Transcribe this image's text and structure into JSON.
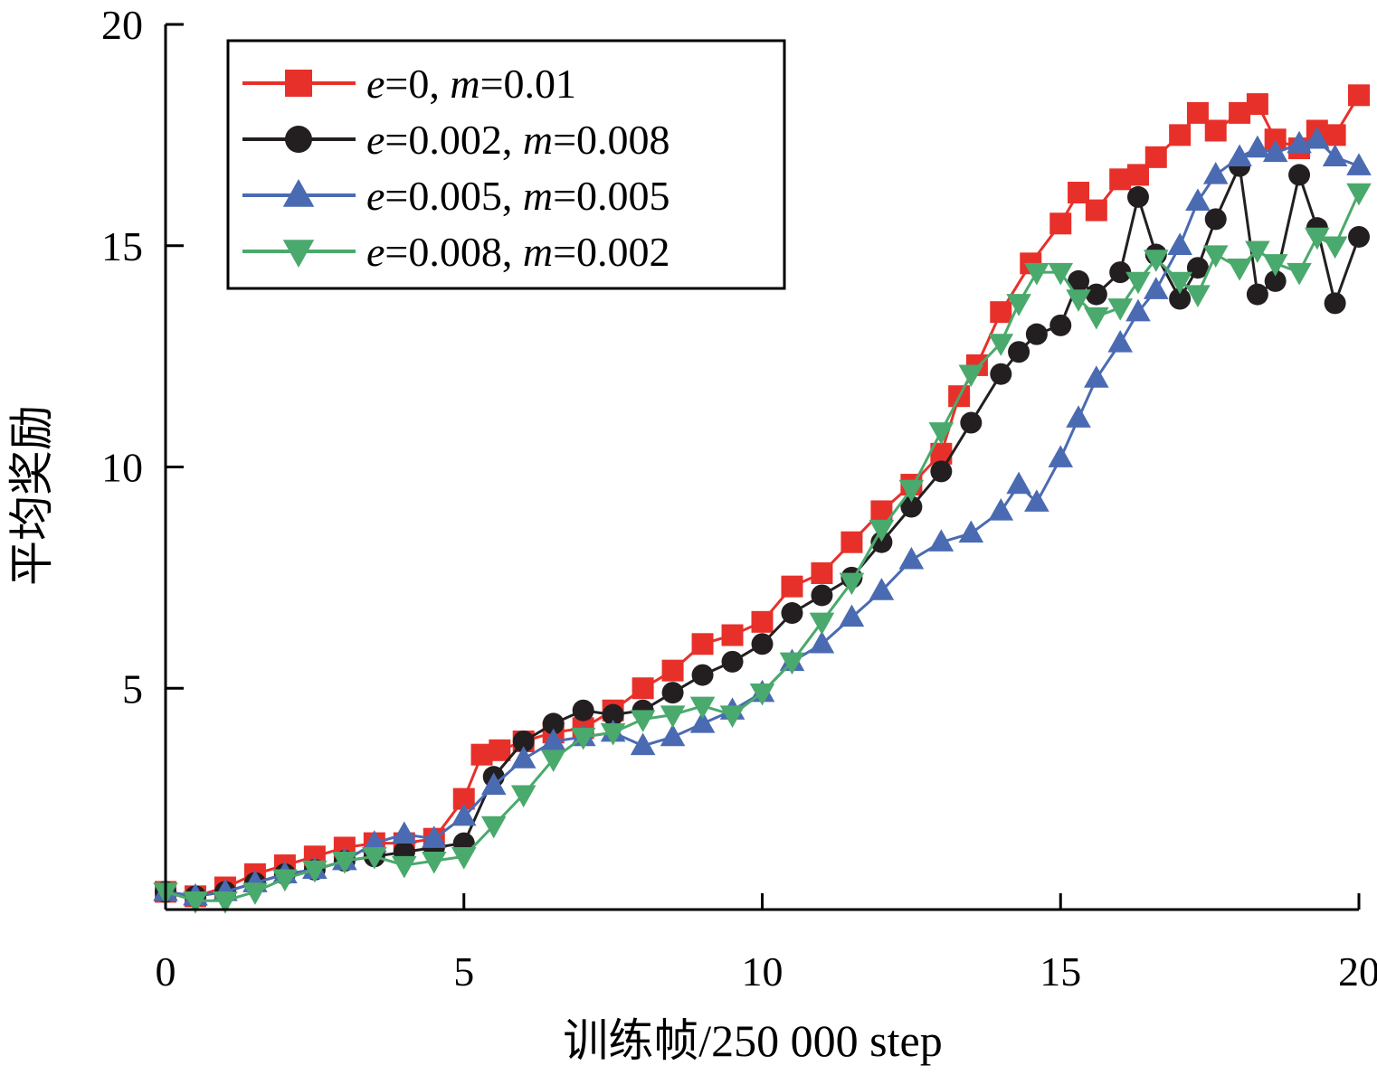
{
  "chart_data": {
    "type": "line",
    "xlabel": "训练帧/250 000 step",
    "ylabel": "平均奖励",
    "xlim": [
      0,
      20
    ],
    "ylim": [
      0,
      20
    ],
    "xticks": [
      "0",
      "5",
      "10",
      "15",
      "20"
    ],
    "yticks": [
      "5",
      "10",
      "15",
      "20"
    ],
    "legend_position": "top-left",
    "grid": false,
    "series": [
      {
        "name": "e=0, m=0.01",
        "legend_parts": [
          {
            "t": "e",
            "italic": true
          },
          {
            "t": "=0, ",
            "italic": false
          },
          {
            "t": "m",
            "italic": true
          },
          {
            "t": "=0.01",
            "italic": false
          }
        ],
        "color": "#e8302a",
        "marker": "square",
        "x": [
          0.0,
          0.5,
          1.0,
          1.5,
          2.0,
          2.5,
          3.0,
          3.5,
          4.0,
          4.5,
          5.0,
          5.3,
          5.6,
          6.0,
          6.5,
          7.0,
          7.5,
          8.0,
          8.5,
          9.0,
          9.5,
          10.0,
          10.5,
          11.0,
          11.5,
          12.0,
          12.5,
          13.0,
          13.3,
          13.6,
          14.0,
          14.5,
          15.0,
          15.3,
          15.6,
          16.0,
          16.3,
          16.6,
          17.0,
          17.3,
          17.6,
          18.0,
          18.3,
          18.6,
          19.0,
          19.3,
          19.6,
          20.0
        ],
        "y": [
          0.4,
          0.3,
          0.5,
          0.8,
          1.0,
          1.2,
          1.4,
          1.5,
          1.5,
          1.6,
          2.5,
          3.5,
          3.6,
          3.8,
          4.0,
          4.1,
          4.5,
          5.0,
          5.4,
          6.0,
          6.2,
          6.5,
          7.3,
          7.6,
          8.3,
          9.0,
          9.6,
          10.3,
          11.6,
          12.3,
          13.5,
          14.6,
          15.5,
          16.2,
          15.8,
          16.5,
          16.6,
          17.0,
          17.5,
          18.0,
          17.6,
          18.0,
          18.2,
          17.4,
          17.2,
          17.6,
          17.5,
          18.4
        ]
      },
      {
        "name": "e=0.002, m=0.008",
        "legend_parts": [
          {
            "t": "e",
            "italic": true
          },
          {
            "t": "=0.002, ",
            "italic": false
          },
          {
            "t": "m",
            "italic": true
          },
          {
            "t": "=0.008",
            "italic": false
          }
        ],
        "color": "#231f20",
        "marker": "circle",
        "x": [
          0.0,
          0.5,
          1.0,
          1.5,
          2.0,
          2.5,
          3.0,
          3.5,
          4.0,
          4.5,
          5.0,
          5.5,
          6.0,
          6.5,
          7.0,
          7.5,
          8.0,
          8.5,
          9.0,
          9.5,
          10.0,
          10.5,
          11.0,
          11.5,
          12.0,
          12.5,
          13.0,
          13.5,
          14.0,
          14.3,
          14.6,
          15.0,
          15.3,
          15.6,
          16.0,
          16.3,
          16.6,
          17.0,
          17.3,
          17.6,
          18.0,
          18.3,
          18.6,
          19.0,
          19.3,
          19.6,
          20.0
        ],
        "y": [
          0.4,
          0.3,
          0.4,
          0.6,
          0.8,
          0.9,
          1.1,
          1.2,
          1.3,
          1.4,
          1.5,
          3.0,
          3.8,
          4.2,
          4.5,
          4.4,
          4.5,
          4.9,
          5.3,
          5.6,
          6.0,
          6.7,
          7.1,
          7.5,
          8.3,
          9.1,
          9.9,
          11.0,
          12.1,
          12.6,
          13.0,
          13.2,
          14.2,
          13.9,
          14.4,
          16.1,
          14.8,
          13.8,
          14.5,
          15.6,
          16.8,
          13.9,
          14.2,
          16.6,
          15.4,
          13.7,
          15.2
        ]
      },
      {
        "name": "e=0.005, m=0.005",
        "legend_parts": [
          {
            "t": "e",
            "italic": true
          },
          {
            "t": "=0.005, ",
            "italic": false
          },
          {
            "t": "m",
            "italic": true
          },
          {
            "t": "=0.005",
            "italic": false
          }
        ],
        "color": "#4a6bb2",
        "marker": "triangle-up",
        "x": [
          0.0,
          0.5,
          1.0,
          1.5,
          2.0,
          2.5,
          3.0,
          3.5,
          4.0,
          4.5,
          5.0,
          5.5,
          6.0,
          6.5,
          7.0,
          7.5,
          8.0,
          8.5,
          9.0,
          9.5,
          10.0,
          10.5,
          11.0,
          11.5,
          12.0,
          12.5,
          13.0,
          13.5,
          14.0,
          14.3,
          14.6,
          15.0,
          15.3,
          15.6,
          16.0,
          16.3,
          16.6,
          17.0,
          17.3,
          17.6,
          18.0,
          18.3,
          18.6,
          19.0,
          19.3,
          19.6,
          20.0
        ],
        "y": [
          0.4,
          0.3,
          0.4,
          0.6,
          0.8,
          0.9,
          1.1,
          1.5,
          1.7,
          1.6,
          2.1,
          2.8,
          3.4,
          3.8,
          3.9,
          4.0,
          3.7,
          3.9,
          4.2,
          4.5,
          4.9,
          5.6,
          6.0,
          6.6,
          7.2,
          7.9,
          8.3,
          8.5,
          9.0,
          9.6,
          9.2,
          10.2,
          11.1,
          12.0,
          12.8,
          13.5,
          14.0,
          15.0,
          16.0,
          16.6,
          17.0,
          17.2,
          17.1,
          17.3,
          17.4,
          17.0,
          16.8
        ]
      },
      {
        "name": "e=0.008, m=0.002",
        "legend_parts": [
          {
            "t": "e",
            "italic": true
          },
          {
            "t": "=0.008, ",
            "italic": false
          },
          {
            "t": "m",
            "italic": true
          },
          {
            "t": "=0.002",
            "italic": false
          }
        ],
        "color": "#4aa96c",
        "marker": "triangle-down",
        "x": [
          0.0,
          0.5,
          1.0,
          1.5,
          2.0,
          2.5,
          3.0,
          3.5,
          4.0,
          4.5,
          5.0,
          5.5,
          6.0,
          6.5,
          7.0,
          7.5,
          8.0,
          8.5,
          9.0,
          9.5,
          10.0,
          10.5,
          11.0,
          11.5,
          12.0,
          12.5,
          13.0,
          13.5,
          14.0,
          14.3,
          14.6,
          15.0,
          15.3,
          15.6,
          16.0,
          16.3,
          16.6,
          17.0,
          17.3,
          17.6,
          18.0,
          18.3,
          18.6,
          19.0,
          19.3,
          19.6,
          20.0
        ],
        "y": [
          0.4,
          0.2,
          0.2,
          0.4,
          0.7,
          0.9,
          1.1,
          1.2,
          1.0,
          1.1,
          1.2,
          1.9,
          2.6,
          3.4,
          3.9,
          4.0,
          4.3,
          4.4,
          4.6,
          4.4,
          4.9,
          5.6,
          6.5,
          7.4,
          8.6,
          9.5,
          10.8,
          12.1,
          12.8,
          13.7,
          14.4,
          14.4,
          13.8,
          13.4,
          13.6,
          14.2,
          14.7,
          14.2,
          13.9,
          14.8,
          14.5,
          14.9,
          14.6,
          14.4,
          15.2,
          15.0,
          16.2
        ]
      }
    ]
  }
}
